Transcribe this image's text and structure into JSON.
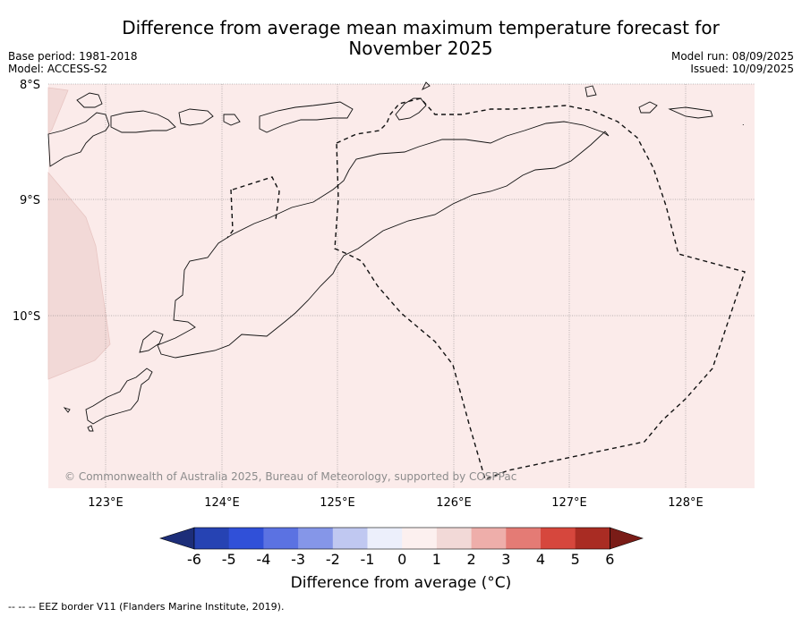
{
  "header": {
    "title_line1": "Difference from average mean maximum temperature forecast for",
    "title_line2": "November 2025",
    "base_period": "Base period: 1981-2018",
    "model": "Model: ACCESS-S2",
    "model_run": "Model run: 08/09/2025",
    "issued": "Issued: 10/09/2025"
  },
  "map": {
    "lat_labels": [
      "8°S",
      "9°S",
      "10°S"
    ],
    "lon_labels": [
      "123°E",
      "124°E",
      "125°E",
      "126°E",
      "127°E",
      "128°E"
    ],
    "background_color": "#fbebea",
    "warm_patch_color": "#f2d9d7",
    "copyright": "© Commonwealth of Australia 2025, Bureau of Meteorology, supported by COSPPac"
  },
  "colorbar": {
    "title": "Difference from average (°C)",
    "ticks": [
      "-6",
      "-5",
      "-4",
      "-3",
      "-2",
      "-1",
      "0",
      "1",
      "2",
      "3",
      "4",
      "5",
      "6"
    ],
    "colors": [
      "#1d2e79",
      "#2643b3",
      "#3050d8",
      "#5b72e2",
      "#8596e8",
      "#c0c8f1",
      "#eceffb",
      "#fcf0ef",
      "#f2d9d7",
      "#eeaeaa",
      "#e47b75",
      "#d6473d",
      "#a92c23",
      "#7a1c17"
    ]
  },
  "footnote": "-- -- -- EEZ border V11 (Flanders Marine Institute, 2019)."
}
